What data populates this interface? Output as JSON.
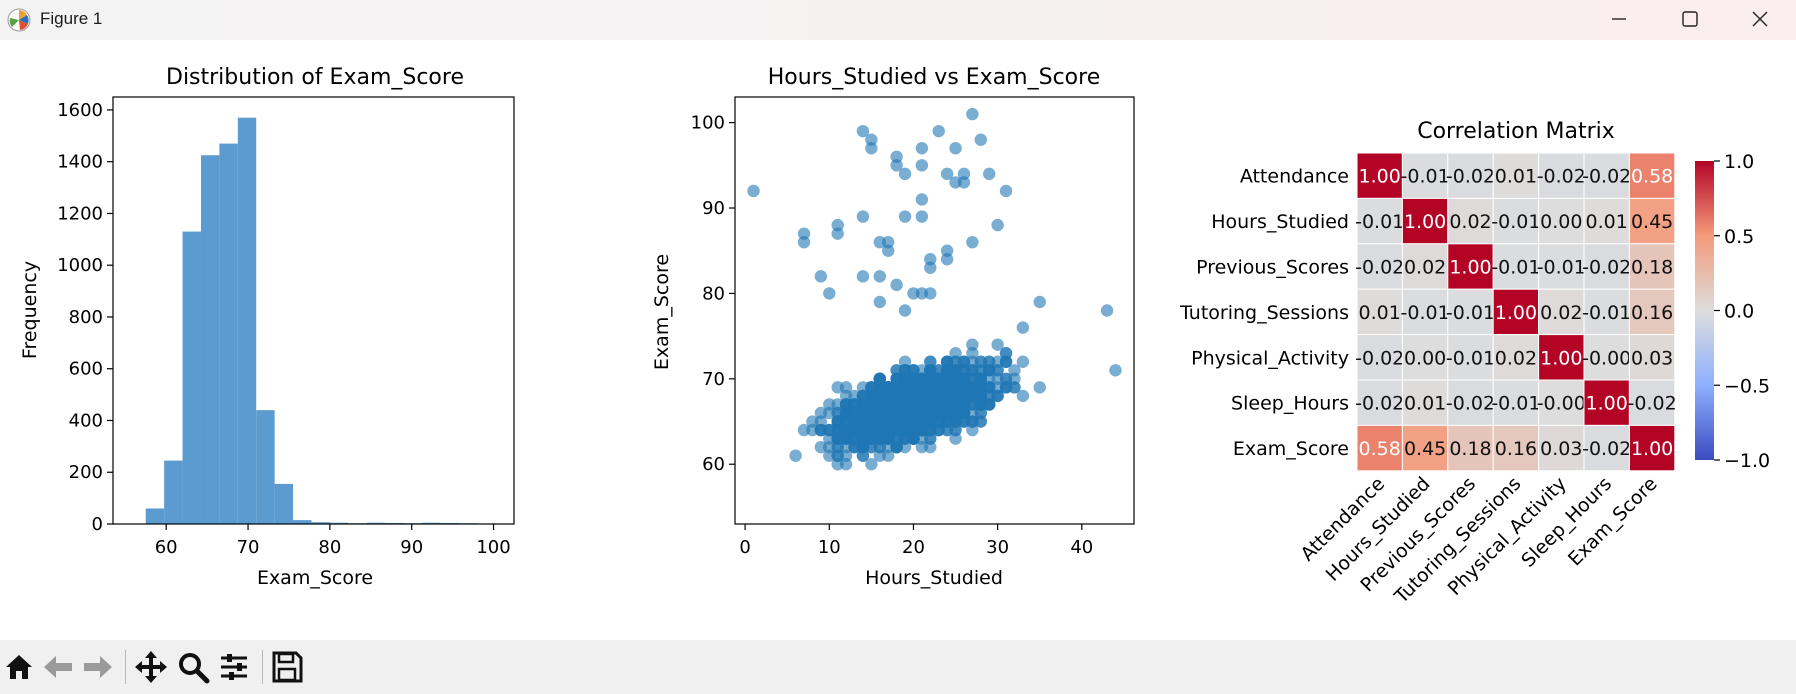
{
  "window": {
    "title": "Figure 1"
  },
  "toolbar": {
    "buttons": [
      "home-icon",
      "back-icon",
      "forward-icon",
      "pan-icon",
      "zoom-icon",
      "configure-icon",
      "save-icon"
    ]
  },
  "colors": {
    "bar": "#5b9bd0",
    "scatter": "#1f77b4",
    "heat_high": "#b40426",
    "heat_low": "#3b4cc0"
  },
  "chart_data": [
    {
      "type": "bar",
      "title": "Distribution of Exam_Score",
      "xlabel": "Exam_Score",
      "ylabel": "Frequency",
      "bin_edges": [
        57.5,
        59.75,
        62.0,
        64.25,
        66.5,
        68.75,
        71.0,
        73.25,
        75.5,
        77.75,
        80.0,
        82.25,
        84.5,
        86.75,
        89.0,
        91.25,
        93.5,
        95.75,
        98.0,
        100.25
      ],
      "values": [
        60,
        245,
        1130,
        1425,
        1470,
        1570,
        440,
        155,
        15,
        7,
        5,
        3,
        5,
        4,
        3,
        5,
        4,
        3,
        2
      ],
      "xlim": [
        53.5,
        102.5
      ],
      "ylim": [
        0,
        1650
      ],
      "xticks": [
        "60",
        "70",
        "80",
        "90",
        "100"
      ],
      "yticks": [
        "0",
        "200",
        "400",
        "600",
        "800",
        "1000",
        "1200",
        "1400",
        "1600"
      ]
    },
    {
      "type": "scatter",
      "title": "Hours_Studied vs Exam_Score",
      "xlabel": "Hours_Studied",
      "ylabel": "Exam_Score",
      "xlim": [
        -1.2,
        46.2
      ],
      "ylim": [
        53,
        103
      ],
      "xticks": [
        "0",
        "10",
        "20",
        "30",
        "40"
      ],
      "yticks": [
        "60",
        "70",
        "80",
        "90",
        "100"
      ],
      "outliers": [
        [
          1,
          92
        ],
        [
          7,
          87
        ],
        [
          7,
          86
        ],
        [
          9,
          82
        ],
        [
          10,
          80
        ],
        [
          11,
          88
        ],
        [
          11,
          87
        ],
        [
          14,
          89
        ],
        [
          14,
          82
        ],
        [
          14,
          99
        ],
        [
          15,
          97
        ],
        [
          15,
          98
        ],
        [
          16,
          82
        ],
        [
          16,
          86
        ],
        [
          16,
          79
        ],
        [
          17,
          86
        ],
        [
          17,
          85
        ],
        [
          18,
          96
        ],
        [
          18,
          95
        ],
        [
          18,
          81
        ],
        [
          19,
          94
        ],
        [
          19,
          89
        ],
        [
          19,
          78
        ],
        [
          20,
          80
        ],
        [
          21,
          97
        ],
        [
          21,
          95
        ],
        [
          21,
          91
        ],
        [
          21,
          89
        ],
        [
          21,
          80
        ],
        [
          22,
          84
        ],
        [
          22,
          83
        ],
        [
          22,
          80
        ],
        [
          23,
          99
        ],
        [
          24,
          94
        ],
        [
          24,
          85
        ],
        [
          24,
          84
        ],
        [
          25,
          93
        ],
        [
          25,
          97
        ],
        [
          26,
          94
        ],
        [
          26,
          93
        ],
        [
          27,
          101
        ],
        [
          27,
          86
        ],
        [
          28,
          98
        ],
        [
          29,
          94
        ],
        [
          30,
          88
        ],
        [
          31,
          92
        ],
        [
          33,
          76
        ],
        [
          35,
          79
        ],
        [
          43,
          78
        ],
        [
          44,
          71
        ]
      ],
      "cluster": {
        "note_excluded": true
      }
    },
    {
      "type": "heatmap",
      "title": "Correlation Matrix",
      "labels": [
        "Attendance",
        "Hours_Studied",
        "Previous_Scores",
        "Tutoring_Sessions",
        "Physical_Activity",
        "Sleep_Hours",
        "Exam_Score"
      ],
      "matrix": [
        [
          1.0,
          -0.01,
          -0.02,
          0.01,
          -0.02,
          -0.02,
          0.58
        ],
        [
          -0.01,
          1.0,
          0.02,
          -0.01,
          0.0,
          0.01,
          0.45
        ],
        [
          -0.02,
          0.02,
          1.0,
          -0.01,
          -0.01,
          -0.02,
          0.18
        ],
        [
          0.01,
          -0.01,
          -0.01,
          1.0,
          0.02,
          -0.01,
          0.16
        ],
        [
          -0.02,
          0.0,
          -0.01,
          0.02,
          1.0,
          -0.0,
          0.03
        ],
        [
          -0.02,
          0.01,
          -0.02,
          -0.01,
          -0.0,
          1.0,
          -0.02
        ],
        [
          0.58,
          0.45,
          0.18,
          0.16,
          0.03,
          -0.02,
          1.0
        ]
      ],
      "cell_text": [
        [
          "1.00",
          "-0.01",
          "-0.02",
          "0.01",
          "-0.02",
          "-0.02",
          "0.58"
        ],
        [
          "-0.01",
          "1.00",
          "0.02",
          "-0.01",
          "0.00",
          "0.01",
          "0.45"
        ],
        [
          "-0.02",
          "0.02",
          "1.00",
          "-0.01",
          "-0.01",
          "-0.02",
          "0.18"
        ],
        [
          "0.01",
          "-0.01",
          "-0.01",
          "1.00",
          "0.02",
          "-0.01",
          "0.16"
        ],
        [
          "-0.02",
          "0.00",
          "-0.01",
          "0.02",
          "1.00",
          "-0.00",
          "0.03"
        ],
        [
          "-0.02",
          "0.01",
          "-0.02",
          "-0.01",
          "-0.00",
          "1.00",
          "-0.02"
        ],
        [
          "0.58",
          "0.45",
          "0.18",
          "0.16",
          "0.03",
          "-0.02",
          "1.00"
        ]
      ],
      "colorbar_range": [
        -1.0,
        1.0
      ],
      "colorbar_ticks": [
        "1.0",
        "0.5",
        "0.0",
        "−0.5",
        "−1.0"
      ]
    }
  ]
}
